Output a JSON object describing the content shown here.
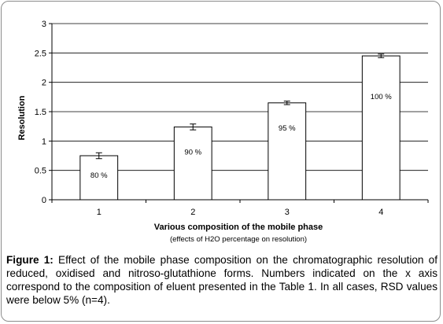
{
  "chart_data": {
    "type": "bar",
    "categories": [
      "1",
      "2",
      "3",
      "4"
    ],
    "values": [
      0.75,
      1.24,
      1.65,
      2.45
    ],
    "errors": [
      0.05,
      0.05,
      0.03,
      0.03
    ],
    "bar_labels": [
      "80 %",
      "90 %",
      "95 %",
      "100 %"
    ],
    "ylabel": "Resolution",
    "xlabel": "Various composition of the mobile phase",
    "xlabel_sub": "(effects of H2O percentage on resolution)",
    "ylim": [
      0,
      3
    ],
    "yticks": [
      "0",
      "0.5",
      "1",
      "1.5",
      "2",
      "2.5",
      "3"
    ],
    "grid": true,
    "bar_color": "#ffffff",
    "grid_color": "#000000"
  },
  "caption": {
    "label": "Figure 1:",
    "text": " Effect of the mobile phase composition on the chromatographic resolution of reduced, oxidised and nitroso-glutathione forms. Numbers indicated on the x axis correspond to the composition of eluent presented in the Table 1. In all cases, RSD values were below 5% (n=4)."
  }
}
